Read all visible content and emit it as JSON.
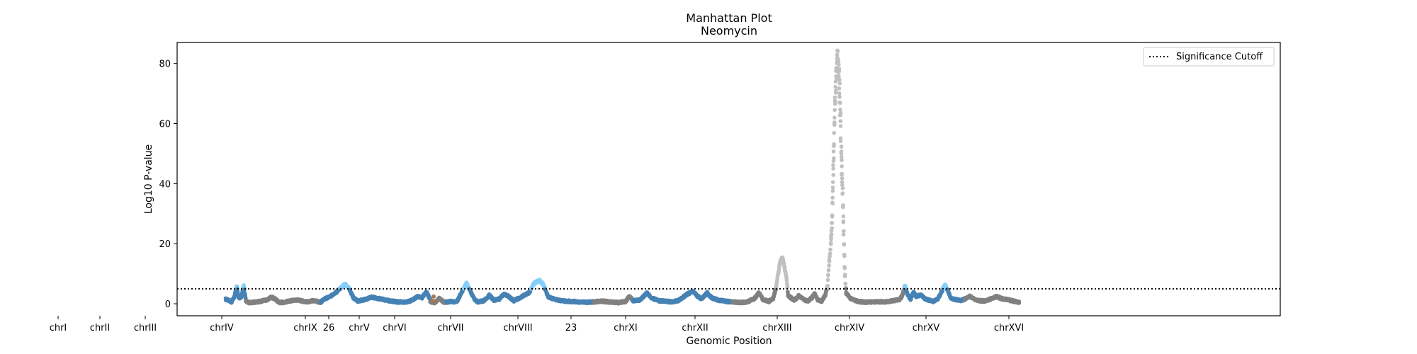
{
  "chart_data": {
    "type": "scatter",
    "title": "Manhattan Plot",
    "subtitle": "Neomycin",
    "xlabel": "Genomic Position",
    "ylabel": "Log10 P-value",
    "ylim": [
      -4,
      87
    ],
    "yticks": [
      0,
      20,
      40,
      60,
      80
    ],
    "grid": false,
    "legend": {
      "placement": "top-right",
      "label": "Significance Cutoff"
    },
    "significance_cutoff": 5,
    "colors": {
      "blue": "#4682b4",
      "gray": "#808080",
      "significant_blue": "#87cefa",
      "significant_gray": "#c0c0c0",
      "brown": "#a0785a",
      "cutoff_line": "#000000"
    },
    "xlim": [
      0,
      1540
    ],
    "chromosomes": [
      {
        "label": "chrI",
        "start": 68,
        "end": 96,
        "base_color": "blue",
        "label_pos": 82
      },
      {
        "label": "chrII",
        "start": 96,
        "end": 142,
        "base_color": "gray",
        "label_pos": 141
      },
      {
        "label": "chrIII",
        "start": 142,
        "end": 200,
        "base_color": "gray",
        "label_pos": 205
      },
      {
        "label": "chrIV",
        "start": 200,
        "end": 320,
        "base_color": "blue",
        "label_pos": 313
      },
      {
        "label": "chrIX",
        "start": 320,
        "end": 354,
        "base_color": "blue",
        "label_pos": 431
      },
      {
        "label": "26",
        "start": 354,
        "end": 376,
        "base_color": "gray",
        "label_pos": 464
      },
      {
        "label": "chrV",
        "start": 376,
        "end": 420,
        "base_color": "blue",
        "label_pos": 507
      },
      {
        "label": "chrVI",
        "start": 420,
        "end": 470,
        "base_color": "blue",
        "label_pos": 557
      },
      {
        "label": "chrVII",
        "start": 470,
        "end": 582,
        "base_color": "blue",
        "label_pos": 636
      },
      {
        "label": "chrVIII",
        "start": 582,
        "end": 636,
        "base_color": "gray",
        "label_pos": 731
      },
      {
        "label": "23",
        "start": 636,
        "end": 701,
        "base_color": "blue",
        "label_pos": 806
      },
      {
        "label": "chrXI",
        "start": 701,
        "end": 776,
        "base_color": "blue",
        "label_pos": 883
      },
      {
        "label": "chrXII",
        "start": 776,
        "end": 862,
        "base_color": "gray",
        "label_pos": 981
      },
      {
        "label": "chrXIII",
        "start": 862,
        "end": 940,
        "base_color": "gray",
        "label_pos": 1097
      },
      {
        "label": "chrXIV",
        "start": 940,
        "end": 1016,
        "base_color": "gray",
        "label_pos": 1199
      },
      {
        "label": "chrXV",
        "start": 1016,
        "end": 1100,
        "base_color": "blue",
        "label_pos": 1307
      },
      {
        "label": "chrXVI",
        "start": 1100,
        "end": 1176,
        "base_color": "gray",
        "label_pos": 1424
      }
    ],
    "profile": [
      [
        68,
        1.5
      ],
      [
        76,
        0.6
      ],
      [
        80,
        2.3
      ],
      [
        83,
        6.0
      ],
      [
        86,
        1.8
      ],
      [
        90,
        2.5
      ],
      [
        93,
        6.2
      ],
      [
        96,
        1.0
      ],
      [
        100,
        0.4
      ],
      [
        112,
        0.6
      ],
      [
        124,
        1.2
      ],
      [
        132,
        2.2
      ],
      [
        138,
        1.4
      ],
      [
        142,
        0.4
      ],
      [
        150,
        0.5
      ],
      [
        160,
        1.1
      ],
      [
        170,
        1.2
      ],
      [
        180,
        0.6
      ],
      [
        190,
        1.0
      ],
      [
        200,
        0.5
      ],
      [
        206,
        1.6
      ],
      [
        218,
        3.0
      ],
      [
        226,
        4.7
      ],
      [
        234,
        6.6
      ],
      [
        240,
        5.2
      ],
      [
        246,
        2.0
      ],
      [
        252,
        0.9
      ],
      [
        262,
        1.4
      ],
      [
        272,
        2.2
      ],
      [
        284,
        1.6
      ],
      [
        296,
        1.0
      ],
      [
        308,
        0.6
      ],
      [
        320,
        0.6
      ],
      [
        328,
        1.2
      ],
      [
        336,
        2.4
      ],
      [
        342,
        2.0
      ],
      [
        348,
        4.0
      ],
      [
        352,
        2.0
      ],
      [
        354,
        0.6
      ],
      [
        360,
        0.4
      ],
      [
        366,
        1.8
      ],
      [
        372,
        0.6
      ],
      [
        376,
        0.5
      ],
      [
        382,
        0.8
      ],
      [
        390,
        0.5
      ],
      [
        398,
        4.2
      ],
      [
        404,
        6.8
      ],
      [
        410,
        3.8
      ],
      [
        416,
        1.2
      ],
      [
        420,
        0.6
      ],
      [
        428,
        1.0
      ],
      [
        436,
        2.8
      ],
      [
        442,
        1.2
      ],
      [
        450,
        1.6
      ],
      [
        456,
        3.2
      ],
      [
        462,
        2.6
      ],
      [
        470,
        1.0
      ],
      [
        480,
        2.2
      ],
      [
        492,
        3.8
      ],
      [
        498,
        6.8
      ],
      [
        506,
        7.8
      ],
      [
        512,
        6.0
      ],
      [
        518,
        2.2
      ],
      [
        528,
        1.4
      ],
      [
        540,
        0.9
      ],
      [
        556,
        0.7
      ],
      [
        570,
        0.5
      ],
      [
        582,
        0.6
      ],
      [
        592,
        0.9
      ],
      [
        604,
        0.6
      ],
      [
        616,
        0.4
      ],
      [
        626,
        0.8
      ],
      [
        632,
        2.6
      ],
      [
        636,
        1.0
      ],
      [
        646,
        1.2
      ],
      [
        656,
        3.6
      ],
      [
        662,
        2.0
      ],
      [
        672,
        1.0
      ],
      [
        682,
        0.8
      ],
      [
        692,
        0.6
      ],
      [
        701,
        1.2
      ],
      [
        712,
        3.2
      ],
      [
        720,
        4.2
      ],
      [
        726,
        2.6
      ],
      [
        732,
        1.6
      ],
      [
        740,
        3.6
      ],
      [
        746,
        2.0
      ],
      [
        756,
        1.2
      ],
      [
        766,
        0.8
      ],
      [
        776,
        0.6
      ],
      [
        786,
        0.4
      ],
      [
        796,
        0.6
      ],
      [
        806,
        1.8
      ],
      [
        812,
        3.6
      ],
      [
        818,
        1.4
      ],
      [
        826,
        0.8
      ],
      [
        832,
        1.8
      ],
      [
        836,
        5.0
      ],
      [
        839,
        10.0
      ],
      [
        842,
        14.0
      ],
      [
        845,
        15.5
      ],
      [
        848,
        12.0
      ],
      [
        851,
        8.0
      ],
      [
        853,
        2.8
      ],
      [
        858,
        1.8
      ],
      [
        862,
        1.2
      ],
      [
        868,
        2.6
      ],
      [
        874,
        1.6
      ],
      [
        880,
        0.8
      ],
      [
        886,
        2.0
      ],
      [
        890,
        3.4
      ],
      [
        894,
        1.4
      ],
      [
        900,
        0.8
      ],
      [
        905,
        3.0
      ],
      [
        908,
        6.0
      ],
      [
        910,
        13.0
      ],
      [
        912,
        18.0
      ],
      [
        914,
        26.0
      ],
      [
        915,
        34.0
      ],
      [
        916,
        45.0
      ],
      [
        917,
        55.0
      ],
      [
        918,
        62.0
      ],
      [
        919,
        70.0
      ],
      [
        920,
        75.0
      ],
      [
        921,
        79.0
      ],
      [
        922,
        82.0
      ],
      [
        923,
        79.0
      ],
      [
        924,
        75.0
      ],
      [
        925,
        70.0
      ],
      [
        926,
        62.0
      ],
      [
        927,
        52.0
      ],
      [
        928,
        45.0
      ],
      [
        929,
        38.0
      ],
      [
        930,
        28.0
      ],
      [
        931,
        20.0
      ],
      [
        932,
        12.0
      ],
      [
        933,
        7.0
      ],
      [
        934,
        3.5
      ],
      [
        938,
        2.6
      ],
      [
        940,
        1.8
      ],
      [
        950,
        0.8
      ],
      [
        962,
        0.5
      ],
      [
        976,
        0.7
      ],
      [
        988,
        0.6
      ],
      [
        1000,
        1.0
      ],
      [
        1008,
        1.4
      ],
      [
        1012,
        2.4
      ],
      [
        1016,
        6.0
      ],
      [
        1020,
        2.8
      ],
      [
        1024,
        1.6
      ],
      [
        1028,
        3.8
      ],
      [
        1032,
        2.4
      ],
      [
        1038,
        3.0
      ],
      [
        1044,
        1.6
      ],
      [
        1050,
        1.2
      ],
      [
        1056,
        0.8
      ],
      [
        1062,
        1.6
      ],
      [
        1068,
        4.4
      ],
      [
        1072,
        6.4
      ],
      [
        1076,
        4.4
      ],
      [
        1080,
        1.8
      ],
      [
        1088,
        1.4
      ],
      [
        1094,
        1.0
      ],
      [
        1100,
        1.6
      ],
      [
        1106,
        2.6
      ],
      [
        1114,
        1.4
      ],
      [
        1120,
        1.0
      ],
      [
        1128,
        0.9
      ],
      [
        1136,
        1.6
      ],
      [
        1144,
        2.4
      ],
      [
        1150,
        1.8
      ],
      [
        1158,
        1.4
      ],
      [
        1166,
        1.0
      ],
      [
        1176,
        0.4
      ]
    ]
  }
}
